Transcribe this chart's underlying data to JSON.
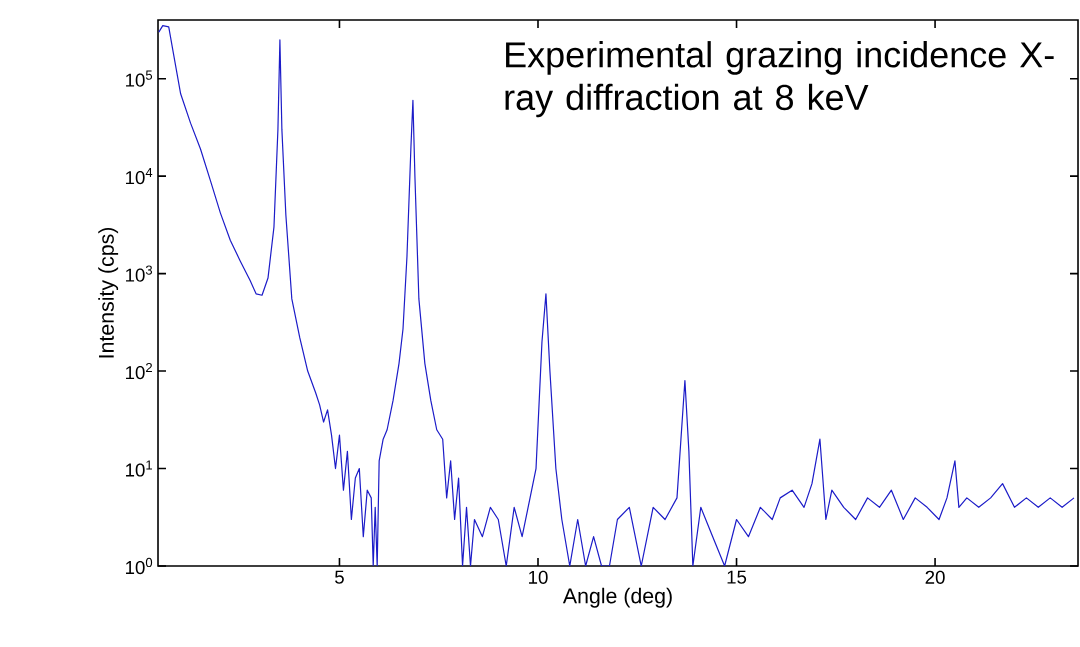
{
  "chart_data": {
    "type": "line",
    "xlabel": "Angle (deg)",
    "ylabel": "Intensity (cps)",
    "annotations": [
      "Experimental grazing incidence X-ray diffraction at 8 keV"
    ],
    "log": "y",
    "grid": false,
    "marker": "none",
    "line_style": "solid",
    "xlim": [
      0.43,
      23.6
    ],
    "ylim": [
      1,
      400000
    ],
    "xticks": [
      5,
      10,
      15,
      20
    ],
    "yticks": [
      {
        "value": 1,
        "label": "10$^{0}$"
      },
      {
        "value": 10,
        "label": "10$^{1}$"
      },
      {
        "value": 100,
        "label": "10$^{2}$"
      },
      {
        "value": 1000,
        "label": "10$^{3}$"
      },
      {
        "value": 10000,
        "label": "10$^{4}$"
      },
      {
        "value": 100000,
        "label": "10$^{5}$"
      }
    ],
    "series": [
      {
        "color": "#1c1cc8",
        "x": [
          0.45,
          0.55,
          0.7,
          0.8,
          1.0,
          1.25,
          1.5,
          1.75,
          2.0,
          2.25,
          2.5,
          2.75,
          2.9,
          3.05,
          3.2,
          3.35,
          3.45,
          3.5,
          3.55,
          3.65,
          3.8,
          4.0,
          4.2,
          4.4,
          4.5,
          4.6,
          4.7,
          4.8,
          4.9,
          5.0,
          5.1,
          5.2,
          5.3,
          5.4,
          5.5,
          5.6,
          5.7,
          5.8,
          5.85,
          5.9,
          5.95,
          6.0,
          6.1,
          6.2,
          6.35,
          6.5,
          6.6,
          6.7,
          6.8,
          6.85,
          6.9,
          7.0,
          7.15,
          7.3,
          7.45,
          7.6,
          7.7,
          7.8,
          7.9,
          8.0,
          8.1,
          8.2,
          8.3,
          8.4,
          8.6,
          8.8,
          9.0,
          9.2,
          9.4,
          9.6,
          9.8,
          9.95,
          10.1,
          10.2,
          10.3,
          10.45,
          10.6,
          10.8,
          11.0,
          11.2,
          11.4,
          11.6,
          11.8,
          12.0,
          12.3,
          12.6,
          12.9,
          13.2,
          13.5,
          13.6,
          13.7,
          13.8,
          13.9,
          14.1,
          14.4,
          14.7,
          15.0,
          15.3,
          15.6,
          15.9,
          16.1,
          16.4,
          16.7,
          16.9,
          17.1,
          17.25,
          17.4,
          17.7,
          18.0,
          18.3,
          18.6,
          18.9,
          19.2,
          19.5,
          19.8,
          20.1,
          20.3,
          20.5,
          20.6,
          20.8,
          21.1,
          21.4,
          21.7,
          22.0,
          22.3,
          22.6,
          22.9,
          23.2,
          23.5
        ],
        "values": [
          300000,
          350000,
          340000,
          200000,
          70000,
          35000,
          19000,
          9000,
          4200,
          2200,
          1350,
          850,
          620,
          600,
          900,
          3000,
          30000,
          250000,
          30000,
          4000,
          550,
          220,
          100,
          60,
          45,
          30,
          40,
          22,
          10,
          22,
          6,
          15,
          3,
          8,
          10,
          2,
          6,
          5,
          1,
          4,
          1,
          12,
          20,
          25,
          50,
          120,
          270,
          1500,
          20000,
          60000,
          10000,
          550,
          120,
          50,
          25,
          20,
          5,
          12,
          3,
          8,
          1,
          4,
          1,
          3,
          2,
          4,
          3,
          1,
          4,
          2,
          5,
          10,
          200,
          620,
          100,
          10,
          3,
          1,
          3,
          1,
          2,
          1,
          1,
          3,
          4,
          1,
          4,
          3,
          5,
          20,
          80,
          15,
          1,
          4,
          2,
          1,
          3,
          2,
          4,
          3,
          5,
          6,
          4,
          7,
          20,
          3,
          6,
          4,
          3,
          5,
          4,
          6,
          3,
          5,
          4,
          3,
          5,
          12,
          4,
          5,
          4,
          5,
          7,
          4,
          5,
          4,
          5,
          4,
          5
        ]
      }
    ]
  }
}
